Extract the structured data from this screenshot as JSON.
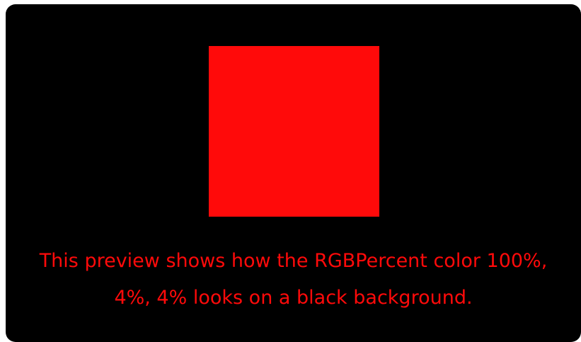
{
  "preview": {
    "swatch_color": "#ff0a0a",
    "background_color": "#000000",
    "caption_line1": "This preview shows how the RGBPercent color 100%,",
    "caption_line2": "4%, 4% looks on a black background."
  }
}
